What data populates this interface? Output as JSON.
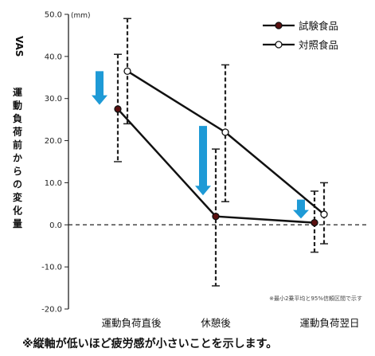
{
  "chart_data": {
    "type": "line",
    "title": "",
    "unit": "(mm)",
    "ylabel_prefix": "VAS",
    "ylabel": "運動負荷前からの変化量",
    "ylim": [
      -20,
      50
    ],
    "yticks": [
      "50.0",
      "40.0",
      "30.0",
      "20.0",
      "10.0",
      "0.0",
      "-10.0",
      "-20.0"
    ],
    "ytick_values": [
      50,
      40,
      30,
      20,
      10,
      0,
      -10,
      -20
    ],
    "categories": [
      "運動負荷直後",
      "休憩後",
      "運動負荷翌日"
    ],
    "series": [
      {
        "name": "試験食品",
        "marker": "filled",
        "values": [
          27.5,
          2.0,
          0.5
        ],
        "ci_lower": [
          15.0,
          -14.5,
          -6.5
        ],
        "ci_upper": [
          40.5,
          18.0,
          8.0
        ]
      },
      {
        "name": "対照食品",
        "marker": "open",
        "values": [
          36.5,
          22.0,
          2.5
        ],
        "ci_lower": [
          24.0,
          5.5,
          -4.5
        ],
        "ci_upper": [
          49.0,
          38.0,
          10.0
        ]
      }
    ],
    "reference_line": 0,
    "arrow_color": "#1e9ad6",
    "grid": false,
    "legend_position": "top-right",
    "note": "※最小2乗平均と95%信頼区間で示す"
  },
  "footnote": "※縦軸が低いほど疲労感が小さいことを示します。"
}
